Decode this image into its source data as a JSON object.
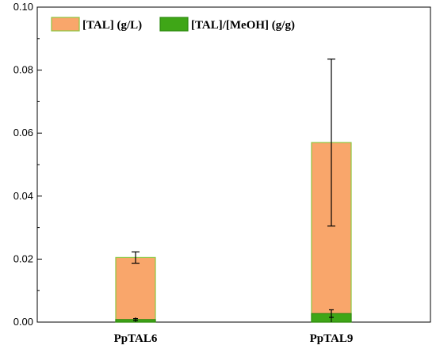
{
  "chart_data": {
    "type": "bar",
    "stacked_overlay": true,
    "categories": [
      "PpTAL6",
      "PpTAL9"
    ],
    "series": [
      {
        "name": "[TAL] (g/L)",
        "values": [
          0.0205,
          0.057
        ],
        "errors": [
          0.0018,
          0.0265
        ],
        "color": "#F9A66B",
        "edge": "#8CC63F"
      },
      {
        "name": "[TAL]/[MeOH] (g/g)",
        "values": [
          0.0008,
          0.0027
        ],
        "errors": [
          0.0003,
          0.0012
        ],
        "color": "#3FA617",
        "edge": "#2E8B10"
      }
    ],
    "xlabel": "",
    "ylabel": "",
    "ylim": [
      0,
      0.1
    ],
    "yticks": [
      "0.00",
      "0.02",
      "0.04",
      "0.06",
      "0.08",
      "0.10"
    ],
    "yticks_values": [
      0,
      0.02,
      0.04,
      0.06,
      0.08,
      0.1
    ],
    "legend_position": "top",
    "grid": false
  }
}
